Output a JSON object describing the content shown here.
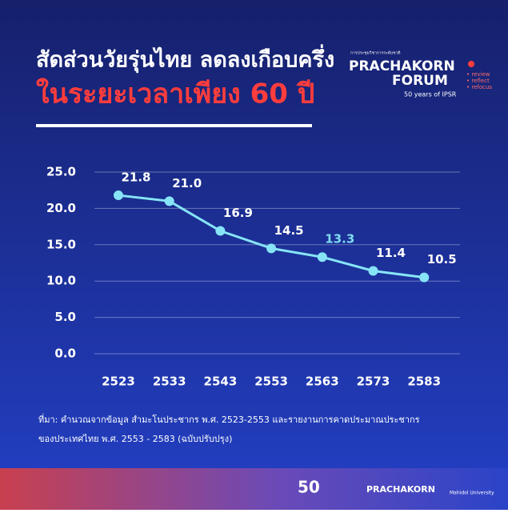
{
  "chart_data": {
    "type": "line",
    "title": "สัดส่วนวัยรุ่นไทย ลดลงเกือบครึ่ง",
    "subtitle": "ในระยะเวลาเพียง 60 ปี",
    "categories": [
      "2523",
      "2533",
      "2543",
      "2553",
      "2563",
      "2573",
      "2583"
    ],
    "values": [
      21.8,
      21.0,
      16.9,
      14.5,
      13.3,
      11.4,
      10.5
    ],
    "value_labels": [
      "21.8",
      "21.0",
      "16.9",
      "14.5",
      "13.3",
      "11.4",
      "10.5"
    ],
    "value_label_colors": [
      "#ffffff",
      "#ffffff",
      "#ffffff",
      "#ffffff",
      "#7fdcf2",
      "#ffffff",
      "#ffffff"
    ],
    "color": "#86e4f6",
    "ylim": [
      0,
      25
    ],
    "yticks": [
      {
        "value": 0,
        "label": "0.0"
      },
      {
        "value": 5,
        "label": "5.0"
      },
      {
        "value": 10,
        "label": "10.0"
      },
      {
        "value": 15,
        "label": "15.0"
      },
      {
        "value": 20,
        "label": "20.0"
      },
      {
        "value": 25,
        "label": "25.0"
      }
    ],
    "grid": true,
    "source": [
      "ที่มา: คำนวณจากข้อมูล สำมะโนประชากร พ.ศ. 2523-2553 และรายงานการคาดประมาณประชากร",
      "ของประเทศไทย พ.ศ. 2553 - 2583 (ฉบับปรับปรุง)"
    ]
  },
  "logo": {
    "top": "การประชุมวิชาการระดับชาติ",
    "name1": "PRACHAKORN",
    "name2": "FORUM",
    "tags": [
      "• review",
      "• reflect",
      "• refocus"
    ],
    "years": "50 years of IPSR"
  },
  "footer": {
    "left": "50",
    "middle": "PRACHAKORN",
    "right": "Mahidol University"
  }
}
